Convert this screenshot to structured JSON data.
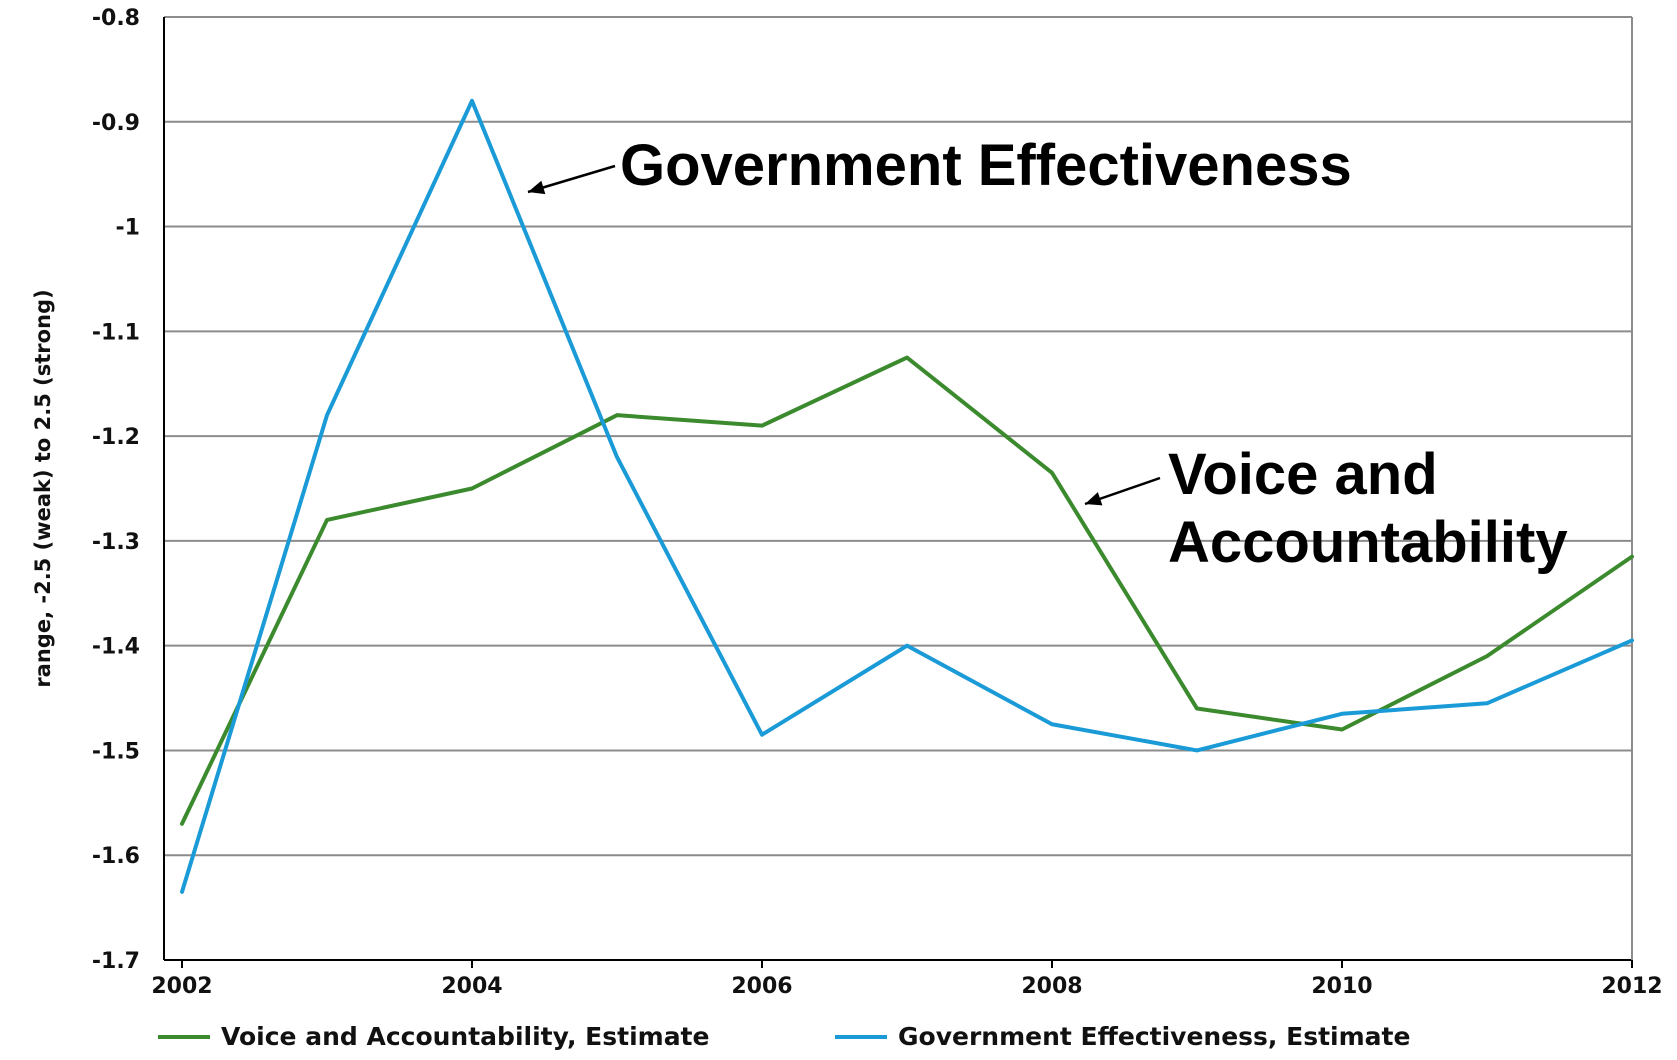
{
  "chart_data": {
    "type": "line",
    "title": "",
    "xlabel": "",
    "ylabel": "range, -2.5 (weak) to 2.5 (strong)",
    "xlim": [
      2002,
      2012
    ],
    "ylim": [
      -1.7,
      -0.8
    ],
    "x_ticks": [
      "2002",
      "2004",
      "2006",
      "2008",
      "2010",
      "2012"
    ],
    "y_ticks": [
      "-0.8",
      "-0.9",
      "-1",
      "-1.1",
      "-1.2",
      "-1.3",
      "-1.4",
      "-1.5",
      "-1.6",
      "-1.7"
    ],
    "grid": true,
    "legend_position": "bottom",
    "x": [
      2002,
      2003,
      2004,
      2005,
      2006,
      2007,
      2008,
      2009,
      2010,
      2011,
      2012
    ],
    "series": [
      {
        "name": "Voice and Accountability, Estimate",
        "color": "#3c8a2e",
        "values": [
          -1.57,
          -1.28,
          -1.25,
          -1.18,
          -1.19,
          -1.125,
          -1.235,
          -1.46,
          -1.48,
          -1.41,
          -1.315
        ]
      },
      {
        "name": "Government Effectiveness, Estimate",
        "color": "#1a9ad6",
        "values": [
          -1.635,
          -1.18,
          -0.88,
          -1.22,
          -1.485,
          -1.4,
          -1.475,
          -1.5,
          -1.465,
          -1.455,
          -1.395
        ]
      }
    ],
    "annotations": [
      {
        "text_lines": [
          "Government Effectiveness"
        ],
        "series_index": 1,
        "x": 2004.4,
        "y": -0.965
      },
      {
        "text_lines": [
          "Voice and",
          "Accountability"
        ],
        "series_index": 0,
        "x": 2008.25,
        "y": -1.265
      }
    ]
  }
}
